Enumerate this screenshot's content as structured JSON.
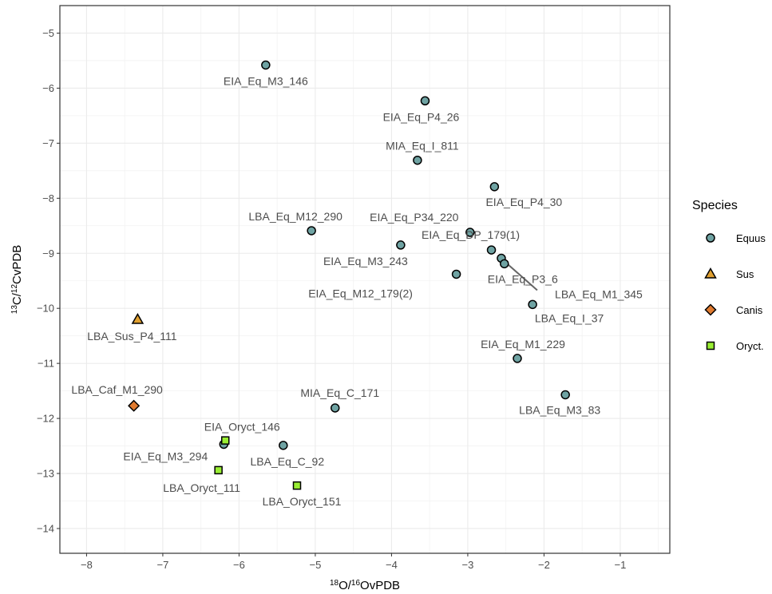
{
  "chart_data": {
    "type": "scatter",
    "xlabel": {
      "sup": "18",
      "text": "O/",
      "sup2": "16",
      "text2": "OvPDB"
    },
    "ylabel": {
      "sup": "13",
      "text": "C/",
      "sup2": "12",
      "text2": "CvPDB"
    },
    "xlim": [
      -8.35,
      -0.35
    ],
    "ylim": [
      -14.45,
      -4.5
    ],
    "x_ticks": [
      -8,
      -7,
      -6,
      -5,
      -4,
      -3,
      -2,
      -1
    ],
    "y_ticks": [
      -5,
      -6,
      -7,
      -8,
      -9,
      -10,
      -11,
      -12,
      -13,
      -14
    ],
    "grid": true,
    "legend": {
      "title": "Species",
      "position": "right",
      "entries": [
        {
          "label": "Equus",
          "shape": "circle",
          "color": "#6fa3a3"
        },
        {
          "label": "Sus",
          "shape": "triangle",
          "color": "#e0a030"
        },
        {
          "label": "Canis",
          "shape": "diamond",
          "color": "#e07b30"
        },
        {
          "label": "Oryct.",
          "shape": "square",
          "color": "#99ee33"
        }
      ]
    },
    "points": [
      {
        "label": "EIA_Eq_M3_146",
        "x": -5.65,
        "y": -5.58,
        "species": "Equus"
      },
      {
        "label": "EIA_Eq_P4_26",
        "x": -3.56,
        "y": -6.23,
        "species": "Equus"
      },
      {
        "label": "MIA_Eq_I_811",
        "x": -3.66,
        "y": -7.31,
        "species": "Equus"
      },
      {
        "label": "EIA_Eq_P4_30",
        "x": -2.65,
        "y": -7.79,
        "species": "Equus"
      },
      {
        "label": "LBA_Eq_M12_290",
        "x": -5.05,
        "y": -8.59,
        "species": "Equus"
      },
      {
        "label": "EIA_Eq_P34_220",
        "x": -2.97,
        "y": -8.62,
        "species": "Equus"
      },
      {
        "label": "EIA_Eq_M3_243",
        "x": -3.88,
        "y": -8.85,
        "species": "Equus"
      },
      {
        "label": "EIA_Eq_DP_179(1)",
        "x": -2.69,
        "y": -8.94,
        "species": "Equus"
      },
      {
        "label": "LBA_Eq_M1_345",
        "x": -2.56,
        "y": -9.09,
        "species": "Equus"
      },
      {
        "label": "EIA_Eq_P3_6",
        "x": -2.52,
        "y": -9.19,
        "species": "Equus"
      },
      {
        "label": "EIA_Eq_M12_179(2)",
        "x": -3.15,
        "y": -9.38,
        "species": "Equus"
      },
      {
        "label": "LBA_Eq_I_37",
        "x": -2.15,
        "y": -9.93,
        "species": "Equus"
      },
      {
        "label": "EIA_Eq_M1_229",
        "x": -2.35,
        "y": -10.91,
        "species": "Equus"
      },
      {
        "label": "LBA_Eq_M3_83",
        "x": -1.72,
        "y": -11.57,
        "species": "Equus"
      },
      {
        "label": "MIA_Eq_C_171",
        "x": -4.74,
        "y": -11.81,
        "species": "Equus"
      },
      {
        "label": "EIA_Eq_M3_294",
        "x": -6.2,
        "y": -12.47,
        "species": "Equus"
      },
      {
        "label": "LBA_Eq_C_92",
        "x": -5.42,
        "y": -12.49,
        "species": "Equus"
      },
      {
        "label": "LBA_Sus_P4_111",
        "x": -7.33,
        "y": -10.2,
        "species": "Sus"
      },
      {
        "label": "LBA_Caf_M1_290",
        "x": -7.38,
        "y": -11.77,
        "species": "Canis"
      },
      {
        "label": "EIA_Oryct_146",
        "x": -6.18,
        "y": -12.4,
        "species": "Oryct."
      },
      {
        "label": "LBA_Oryct_111",
        "x": -6.27,
        "y": -12.94,
        "species": "Oryct."
      },
      {
        "label": "LBA_Oryct_151",
        "x": -5.24,
        "y": -13.22,
        "species": "Oryct."
      }
    ]
  }
}
